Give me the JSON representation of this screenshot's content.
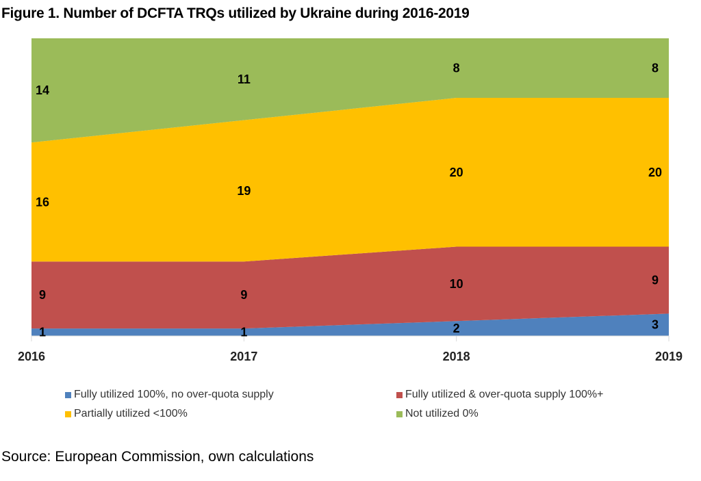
{
  "title": "Figure 1. Number of DCFTA TRQs utilized by Ukraine during 2016-2019",
  "source": "Source: European Commission, own calculations",
  "chart_data": {
    "type": "area",
    "stacked": true,
    "title": "Figure 1. Number of DCFTA TRQs utilized by Ukraine during 2016-2019",
    "categories": [
      "2016",
      "2017",
      "2018",
      "2019"
    ],
    "ylim": [
      0,
      40
    ],
    "grid": false,
    "legend_position": "bottom",
    "series": [
      {
        "name": "Fully utilized 100%, no over-quota supply",
        "values": [
          1,
          1,
          2,
          3
        ],
        "color": "#4F81BD"
      },
      {
        "name": "Fully utilized & over-quota supply 100%+",
        "values": [
          9,
          9,
          10,
          9
        ],
        "color": "#C0504D"
      },
      {
        "name": "Partially utilized <100%",
        "values": [
          16,
          19,
          20,
          20
        ],
        "color": "#FFC000"
      },
      {
        "name": "Not utilized 0%",
        "values": [
          14,
          11,
          8,
          8
        ],
        "color": "#9BBB59"
      }
    ]
  }
}
